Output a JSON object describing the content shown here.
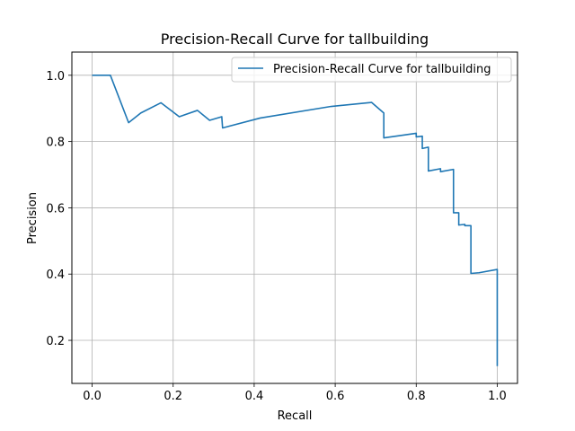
{
  "chart_data": {
    "type": "line",
    "title": "Precision-Recall Curve for tallbuilding",
    "xlabel": "Recall",
    "ylabel": "Precision",
    "xlim": [
      -0.05,
      1.05
    ],
    "ylim": [
      0.07,
      1.07
    ],
    "xticks": [
      0.0,
      0.2,
      0.4,
      0.6,
      0.8,
      1.0
    ],
    "xtick_labels": [
      "0.0",
      "0.2",
      "0.4",
      "0.6",
      "0.8",
      "1.0"
    ],
    "yticks": [
      0.2,
      0.4,
      0.6,
      0.8,
      1.0
    ],
    "ytick_labels": [
      "0.2",
      "0.4",
      "0.6",
      "0.8",
      "1.0"
    ],
    "grid": true,
    "legend_position": "upper right",
    "series": [
      {
        "name": "Precision-Recall Curve for tallbuilding",
        "color": "#1f77b4",
        "x": [
          0.0,
          0.045,
          0.09,
          0.12,
          0.17,
          0.215,
          0.26,
          0.29,
          0.32,
          0.322,
          0.415,
          0.59,
          0.69,
          0.72,
          0.72,
          0.8,
          0.8,
          0.815,
          0.815,
          0.83,
          0.83,
          0.86,
          0.86,
          0.892,
          0.892,
          0.905,
          0.905,
          0.92,
          0.92,
          0.935,
          0.935,
          0.955,
          1.0,
          1.0
        ],
        "y": [
          1.0,
          1.0,
          0.857,
          0.886,
          0.917,
          0.875,
          0.894,
          0.864,
          0.875,
          0.841,
          0.871,
          0.906,
          0.918,
          0.886,
          0.811,
          0.825,
          0.814,
          0.816,
          0.779,
          0.783,
          0.711,
          0.718,
          0.709,
          0.716,
          0.585,
          0.585,
          0.548,
          0.55,
          0.546,
          0.546,
          0.402,
          0.404,
          0.414,
          0.122
        ]
      }
    ]
  }
}
